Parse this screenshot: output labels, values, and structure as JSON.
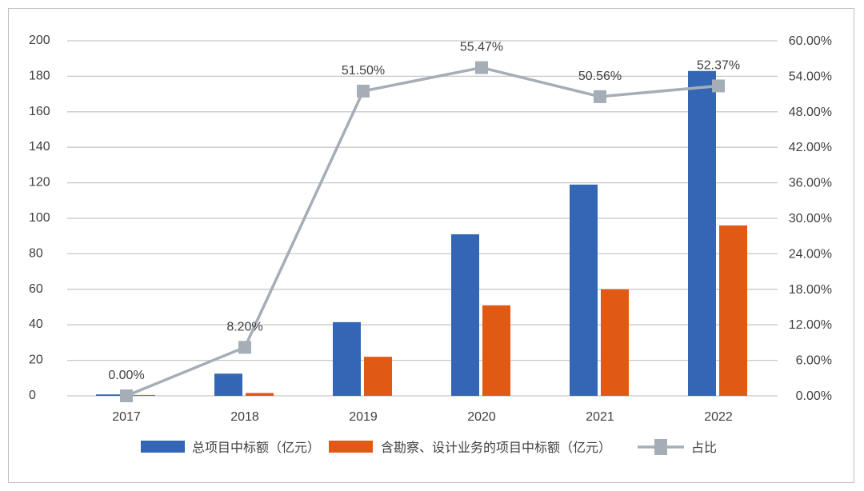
{
  "chart_data": {
    "type": "bar+line",
    "categories": [
      "2017",
      "2018",
      "2019",
      "2020",
      "2021",
      "2022"
    ],
    "series": [
      {
        "name": "总项目中标额（亿元）",
        "type": "bar",
        "axis": "left",
        "color": "#3366b5",
        "values": [
          0.8,
          12.5,
          41.5,
          91,
          119,
          183
        ]
      },
      {
        "name": "含勘察、设计业务的项目中标额（亿元）",
        "type": "bar",
        "axis": "left",
        "color": "#e05a16",
        "values": [
          0.5,
          1.6,
          22,
          51,
          60,
          96
        ]
      },
      {
        "name": "占比",
        "type": "line",
        "axis": "right",
        "color": "#a5adb6",
        "values": [
          0.0,
          8.2,
          51.5,
          55.47,
          50.56,
          52.37
        ],
        "labels": [
          "0.00%",
          "8.20%",
          "51.50%",
          "55.47%",
          "50.56%",
          "52.37%"
        ]
      }
    ],
    "y_left": {
      "range": [
        0,
        200
      ],
      "ticks": [
        "0",
        "20",
        "40",
        "60",
        "80",
        "100",
        "120",
        "140",
        "160",
        "180",
        "200"
      ]
    },
    "y_right": {
      "range": [
        0,
        60
      ],
      "ticks": [
        "0.00%",
        "6.00%",
        "12.00%",
        "18.00%",
        "24.00%",
        "30.00%",
        "36.00%",
        "42.00%",
        "48.00%",
        "54.00%",
        "60.00%"
      ]
    },
    "grid": true,
    "legend": "bottom"
  }
}
